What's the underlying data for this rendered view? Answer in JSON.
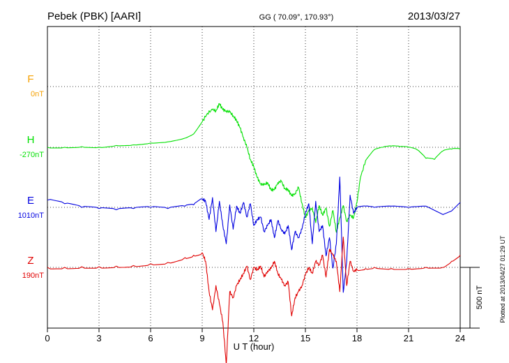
{
  "header": {
    "station": "Pebek (PBK)  [AARI]",
    "coords": "GG ( 70.09°, 170.93°)",
    "date": "2013/03/27"
  },
  "side_note": "Plotted at 2013/04/27 01:29 UT",
  "scale_label": "500 nT",
  "chart_data": {
    "type": "line",
    "xlabel": "U T (hour)",
    "xlim": [
      0,
      24
    ],
    "xticks": [
      "0",
      "3",
      "6",
      "9",
      "12",
      "15",
      "18",
      "21",
      "24"
    ],
    "grid": true,
    "unit": "nT",
    "scale_bar_nT": 500,
    "series": [
      {
        "name": "F",
        "baseline_label": "0nT",
        "color": "#f5a000",
        "x": [],
        "y": []
      },
      {
        "name": "H",
        "baseline_label": "-270nT",
        "color": "#00e000",
        "x": [
          0,
          1,
          2,
          3,
          4,
          5,
          6,
          7,
          8,
          8.5,
          9,
          9.3,
          9.6,
          9.8,
          10,
          10.2,
          10.4,
          10.6,
          10.8,
          11,
          11.2,
          11.4,
          11.6,
          11.8,
          12,
          12.2,
          12.4,
          12.6,
          12.8,
          13,
          13.2,
          13.4,
          13.6,
          13.8,
          14,
          14.2,
          14.4,
          14.6,
          14.8,
          15,
          15.2,
          15.4,
          15.6,
          15.8,
          16,
          16.2,
          16.4,
          16.6,
          16.8,
          17,
          17.2,
          17.4,
          17.6,
          17.8,
          18,
          18.2,
          18.5,
          19,
          19.5,
          20,
          20.5,
          21,
          21.5,
          22,
          22.5,
          23,
          23.5,
          24
        ],
        "y": [
          0,
          0,
          5,
          0,
          15,
          20,
          35,
          45,
          75,
          110,
          210,
          280,
          310,
          300,
          360,
          310,
          300,
          290,
          260,
          220,
          160,
          80,
          0,
          -100,
          -160,
          -250,
          -300,
          -310,
          -290,
          -350,
          -350,
          -290,
          -280,
          -340,
          -350,
          -400,
          -380,
          -330,
          -460,
          -580,
          -520,
          -500,
          -620,
          -480,
          -560,
          -500,
          -650,
          -520,
          -700,
          -580,
          -480,
          -610,
          -560,
          -580,
          -450,
          -250,
          -110,
          -20,
          0,
          10,
          5,
          0,
          -20,
          -90,
          -100,
          -30,
          -15,
          -15
        ]
      },
      {
        "name": "E",
        "baseline_label": "1010nT",
        "color": "#0000e0",
        "x": [
          0,
          1,
          2,
          3,
          4,
          5,
          6,
          7,
          8,
          8.5,
          9,
          9.2,
          9.4,
          9.6,
          9.8,
          10,
          10.2,
          10.4,
          10.6,
          10.8,
          11,
          11.2,
          11.4,
          11.6,
          11.8,
          12,
          12.2,
          12.4,
          12.6,
          12.8,
          13,
          13.2,
          13.4,
          13.6,
          13.8,
          14,
          14.2,
          14.4,
          14.6,
          14.8,
          15,
          15.2,
          15.4,
          15.6,
          15.8,
          16,
          16.2,
          16.4,
          16.6,
          16.8,
          17,
          17.2,
          17.4,
          17.6,
          17.8,
          18,
          18.5,
          19,
          20,
          21,
          22,
          23,
          23.5,
          24
        ],
        "y": [
          60,
          30,
          0,
          -10,
          -20,
          -10,
          0,
          -10,
          10,
          20,
          70,
          50,
          -100,
          80,
          -200,
          50,
          -150,
          -300,
          20,
          -180,
          10,
          -50,
          40,
          -80,
          30,
          -150,
          -100,
          -80,
          -200,
          -150,
          -100,
          -250,
          -110,
          -180,
          -220,
          -150,
          -350,
          -200,
          -250,
          -180,
          -50,
          30,
          -300,
          50,
          -200,
          -150,
          -400,
          -250,
          -500,
          -300,
          250,
          -700,
          -450,
          100,
          -50,
          0,
          10,
          0,
          10,
          0,
          10,
          -60,
          -30,
          40
        ]
      },
      {
        "name": "Z",
        "baseline_label": "190nT",
        "color": "#e00000",
        "x": [
          0,
          1,
          2,
          3,
          4,
          5,
          6,
          7,
          8,
          8.5,
          9,
          9.2,
          9.4,
          9.6,
          9.8,
          10,
          10.2,
          10.4,
          10.6,
          10.8,
          11,
          11.2,
          11.4,
          11.6,
          11.8,
          12,
          12.2,
          12.4,
          12.6,
          12.8,
          13,
          13.2,
          13.4,
          13.6,
          13.8,
          14,
          14.2,
          14.4,
          14.6,
          14.8,
          15,
          15.2,
          15.4,
          15.6,
          15.8,
          16,
          16.2,
          16.4,
          16.6,
          16.8,
          17,
          17.2,
          17.4,
          17.6,
          17.8,
          18,
          18.5,
          19,
          20,
          21,
          22,
          23,
          23.5,
          24
        ],
        "y": [
          0,
          0,
          5,
          5,
          10,
          15,
          30,
          40,
          80,
          100,
          120,
          50,
          -200,
          -350,
          -150,
          -300,
          -450,
          -800,
          -200,
          -250,
          -150,
          -100,
          -50,
          10,
          -100,
          0,
          -20,
          10,
          -80,
          -30,
          -10,
          50,
          -50,
          -100,
          -150,
          -120,
          -400,
          -250,
          -200,
          -150,
          -60,
          0,
          -50,
          50,
          20,
          100,
          -80,
          150,
          100,
          50,
          -200,
          250,
          -150,
          50,
          -30,
          -20,
          -10,
          0,
          -10,
          -10,
          0,
          0,
          50,
          100
        ]
      }
    ]
  }
}
